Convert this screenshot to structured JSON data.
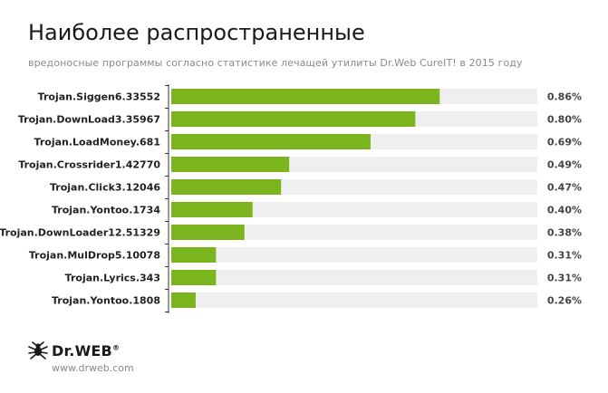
{
  "title": "Наиболее распространенные",
  "subtitle": "вредоносные программы согласно статистике лечащей утилиты Dr.Web CureIT! в 2015 году",
  "logo": {
    "name": "Dr.WEB",
    "mark": "®",
    "icon": "spider-icon"
  },
  "site": "www.drweb.com",
  "colors": {
    "bar": "#7ab51d",
    "track": "#efefef",
    "axis": "#333333"
  },
  "chart_data": {
    "type": "bar",
    "orientation": "horizontal",
    "categories": [
      "Trojan.Siggen6.33552",
      "Trojan.DownLoad3.35967",
      "Trojan.LoadMoney.681",
      "Trojan.Crossrider1.42770",
      "Trojan.Click3.12046",
      "Trojan.Yontoo.1734",
      "Trojan.DownLoader12.51329",
      "Trojan.MulDrop5.10078",
      "Trojan.Lyrics.343",
      "Trojan.Yontoo.1808"
    ],
    "values": [
      0.86,
      0.8,
      0.69,
      0.49,
      0.47,
      0.4,
      0.38,
      0.31,
      0.31,
      0.26
    ],
    "value_labels": [
      "0.86%",
      "0.80%",
      "0.69%",
      "0.49%",
      "0.47%",
      "0.40%",
      "0.38%",
      "0.31%",
      "0.31%",
      "0.26%"
    ],
    "xlim": [
      0.2,
      1.1
    ],
    "grid": false
  }
}
